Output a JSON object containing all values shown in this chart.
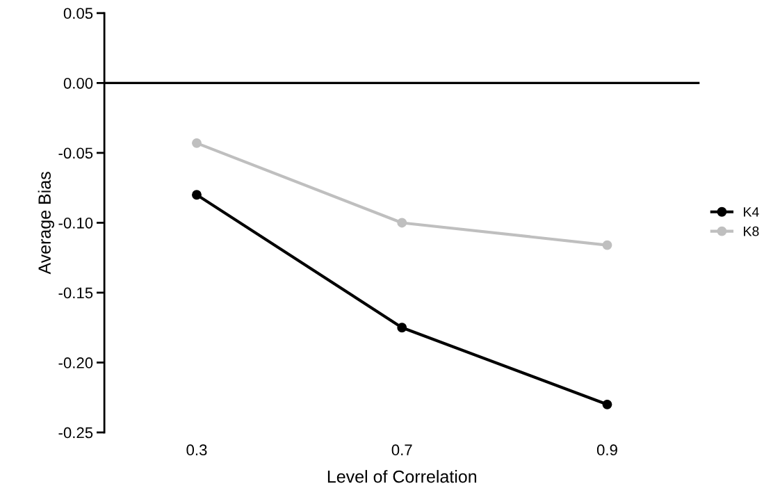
{
  "chart_data": {
    "type": "line",
    "xlabel": "Level of Correlation",
    "ylabel": "Average Bias",
    "categories": [
      "0.3",
      "0.7",
      "0.9"
    ],
    "series": [
      {
        "name": "K4",
        "color": "#000000",
        "values": [
          -0.08,
          -0.175,
          -0.23
        ]
      },
      {
        "name": "K8",
        "color": "#bfbfbf",
        "values": [
          -0.043,
          -0.1,
          -0.116
        ]
      }
    ],
    "ylim": [
      -0.25,
      0.05
    ],
    "yticks": [
      {
        "value": 0.05,
        "label": "0.05"
      },
      {
        "value": 0,
        "label": "0.00"
      },
      {
        "value": -0.05,
        "label": "-0.05"
      },
      {
        "value": -0.1,
        "label": "-0.10"
      },
      {
        "value": -0.15,
        "label": "-0.15"
      },
      {
        "value": -0.2,
        "label": "-0.20"
      },
      {
        "value": -0.25,
        "label": "-0.25"
      }
    ],
    "ref_lines": [
      {
        "axis": "y",
        "value": 0,
        "label": null,
        "color": "#000000"
      }
    ],
    "grid": false,
    "legend": "right",
    "marker": "circle",
    "line_style": "solid"
  }
}
